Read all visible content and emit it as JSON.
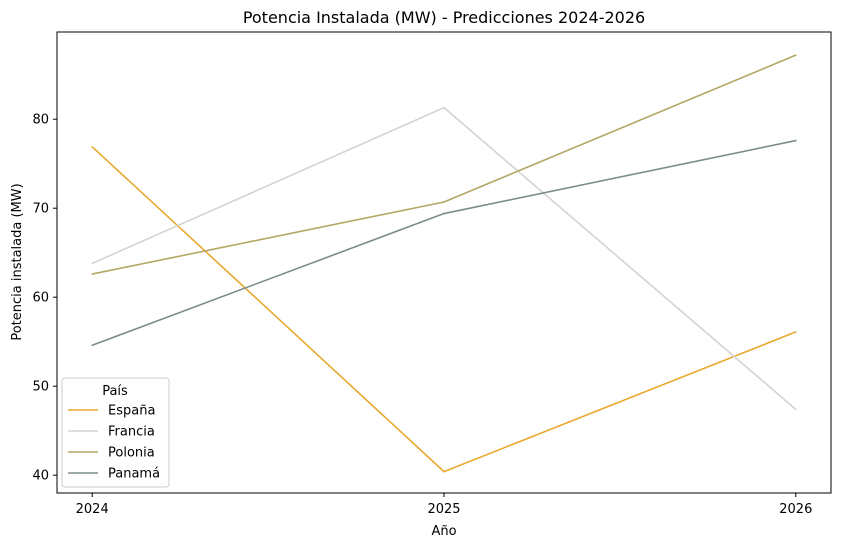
{
  "chart_data": {
    "type": "line",
    "title": "Potencia Instalada (MW) - Predicciones 2024-2026",
    "xlabel": "Año",
    "ylabel": "Potencia instalada (MW)",
    "x": [
      2024,
      2025,
      2026
    ],
    "x_tick_labels": [
      "2024",
      "2025",
      "2026"
    ],
    "y_ticks": [
      40,
      50,
      60,
      70,
      80
    ],
    "ylim": [
      38.0,
      89.8
    ],
    "grid": false,
    "legend": {
      "title": "País",
      "placement": "lower-left"
    },
    "series": [
      {
        "name": "España",
        "values": [
          76.9,
          40.4,
          56.1
        ],
        "color": "#e8a92e"
      },
      {
        "name": "Francia",
        "values": [
          63.8,
          81.3,
          47.4
        ],
        "color": "#d3d3d3"
      },
      {
        "name": "Polonia",
        "values": [
          62.6,
          70.7,
          87.2
        ],
        "color": "#b3a765"
      },
      {
        "name": "Panamá",
        "values": [
          54.6,
          69.4,
          77.6
        ],
        "color": "#7b8c8e"
      }
    ]
  }
}
